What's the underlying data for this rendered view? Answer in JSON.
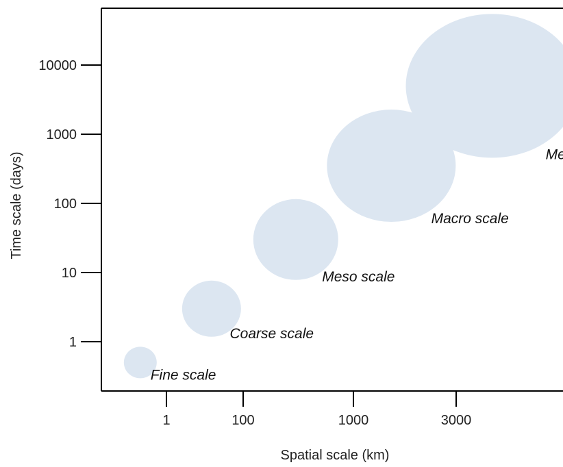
{
  "chart_data": {
    "type": "scatter",
    "title": "",
    "xlabel": "Spatial scale (km)",
    "ylabel": "Time scale (days)",
    "x_ticks": [
      "1",
      "100",
      "1000",
      "3000"
    ],
    "y_ticks": [
      "1",
      "10",
      "100",
      "1000",
      "10000"
    ],
    "bubble_color": "#dce6f1",
    "axis_color": "#000000",
    "bubbles": [
      {
        "label": "Fine scale",
        "x": 0.3,
        "y": 0.5,
        "size": 1
      },
      {
        "label": "Coarse scale",
        "x": 15,
        "y": 3,
        "size": 2
      },
      {
        "label": "Meso scale",
        "x": 300,
        "y": 30,
        "size": 3
      },
      {
        "label": "Macro scale",
        "x": 1500,
        "y": 350,
        "size": 4
      },
      {
        "label": "Mega scale",
        "x": 4500,
        "y": 5000,
        "size": 5
      }
    ]
  }
}
